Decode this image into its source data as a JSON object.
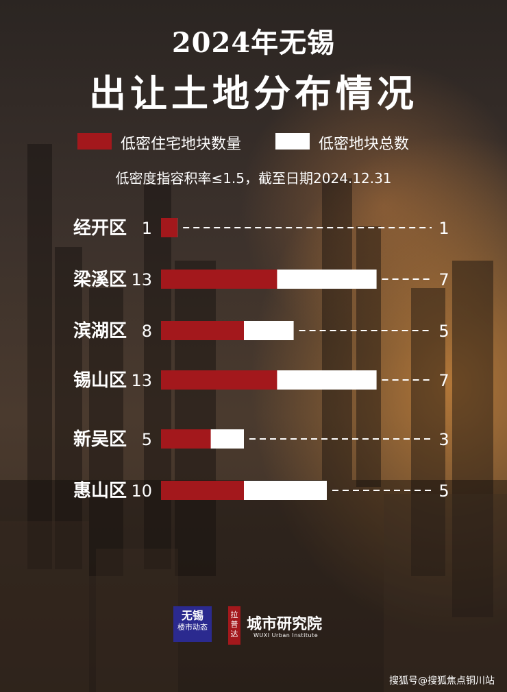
{
  "header": {
    "title_line1": "2024年无锡",
    "title_line2": "出让土地分布情况"
  },
  "legend": {
    "red_label": "低密住宅地块数量",
    "white_label": "低密地块总数"
  },
  "subtitle": "低密度指容积率≤1.5，截至日期2024.12.31",
  "colors": {
    "residential": "#a3181c",
    "total": "#ffffff"
  },
  "chart_data": {
    "type": "bar",
    "categories": [
      "经开区",
      "梁溪区",
      "滨湖区",
      "锡山区",
      "新吴区",
      "惠山区"
    ],
    "left_labels": [
      "1",
      "13",
      "8",
      "13",
      "5",
      "10"
    ],
    "right_labels": [
      "1",
      "7",
      "5",
      "7",
      "3",
      "5"
    ],
    "series": [
      {
        "name": "低密住宅地块数量",
        "values": [
          1,
          7,
          5,
          7,
          3,
          5
        ]
      },
      {
        "name": "低密地块总数",
        "values": [
          1,
          13,
          8,
          13,
          5,
          10
        ]
      }
    ],
    "orientation": "horizontal",
    "legend_position": "top"
  },
  "footer": {
    "badge_line1": "无锡",
    "badge_line2": "楼市动态",
    "red_tag": "拉普达",
    "logo_text": "城市研究院",
    "logo_sub": "WUXI Urban Institute",
    "watermark": "搜狐号@搜狐焦点铜川站"
  }
}
